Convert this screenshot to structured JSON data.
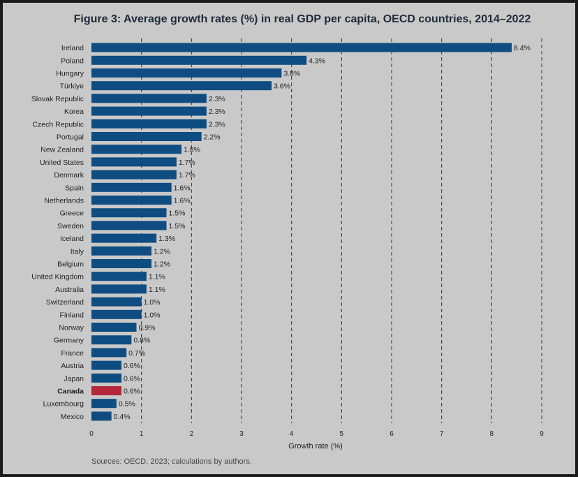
{
  "title": "Figure 3: Average growth rates (%) in real GDP per capita, OECD countries, 2014–2022",
  "source": "Sources: OECD, 2023; calculations by authors.",
  "colors": {
    "bar": "#0f4c81",
    "highlight": "#b5273a",
    "background": "#c9c9c9"
  },
  "chart_data": {
    "type": "bar",
    "orientation": "horizontal",
    "title": "Figure 3: Average growth rates (%) in real GDP per capita, OECD countries, 2014–2022",
    "xlabel": "Growth rate (%)",
    "ylabel": "",
    "xlim": [
      0,
      9
    ],
    "xticks": [
      "0",
      "1",
      "2",
      "3",
      "4",
      "5",
      "6",
      "7",
      "8",
      "9"
    ],
    "grid": "vertical dashed",
    "highlight": "Canada",
    "categories": [
      "Ireland",
      "Poland",
      "Hungary",
      "Türkiye",
      "Slovak Republic",
      "Korea",
      "Czech Republic",
      "Portugal",
      "New Zealand",
      "United States",
      "Denmark",
      "Spain",
      "Netherlands",
      "Greece",
      "Sweden",
      "Iceland",
      "Italy",
      "Belgium",
      "United Kingdom",
      "Australia",
      "Switzerland",
      "Finland",
      "Norway",
      "Germany",
      "France",
      "Austria",
      "Japan",
      "Canada",
      "Luxembourg",
      "Mexico"
    ],
    "values": [
      8.4,
      4.3,
      3.8,
      3.6,
      2.3,
      2.3,
      2.3,
      2.2,
      1.8,
      1.7,
      1.7,
      1.6,
      1.6,
      1.5,
      1.5,
      1.3,
      1.2,
      1.2,
      1.1,
      1.1,
      1.0,
      1.0,
      0.9,
      0.8,
      0.7,
      0.6,
      0.6,
      0.6,
      0.5,
      0.4
    ],
    "labels": [
      "8.4%",
      "4.3%",
      "3.8%",
      "3.6%",
      "2.3%",
      "2.3%",
      "2.3%",
      "2.2%",
      "1.8%",
      "1.7%",
      "1.7%",
      "1.6%",
      "1.6%",
      "1.5%",
      "1.5%",
      "1.3%",
      "1.2%",
      "1.2%",
      "1.1%",
      "1.1%",
      "1.0%",
      "1.0%",
      "0.9%",
      "0.8%",
      "0.7%",
      "0.6%",
      "0.6%",
      "0.6%",
      "0.5%",
      "0.4%"
    ]
  }
}
